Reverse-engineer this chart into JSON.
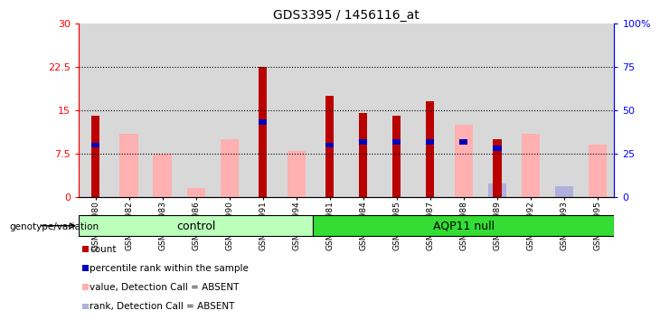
{
  "title": "GDS3395 / 1456116_at",
  "samples": [
    "GSM267980",
    "GSM267982",
    "GSM267983",
    "GSM267986",
    "GSM267990",
    "GSM267991",
    "GSM267994",
    "GSM267981",
    "GSM267984",
    "GSM267985",
    "GSM267987",
    "GSM267988",
    "GSM267989",
    "GSM267992",
    "GSM267993",
    "GSM267995"
  ],
  "count_values": [
    14.0,
    0,
    0,
    0,
    0,
    22.5,
    0,
    17.5,
    14.5,
    14.0,
    16.5,
    0,
    10.0,
    0,
    0,
    0
  ],
  "percentile_values": [
    9.0,
    0,
    0,
    0,
    0,
    13.0,
    0,
    9.0,
    9.5,
    9.5,
    9.5,
    9.5,
    8.5,
    0,
    0,
    0
  ],
  "absent_value_values": [
    0,
    11.0,
    7.5,
    1.5,
    10.0,
    0,
    8.0,
    0,
    0,
    0,
    0,
    12.5,
    0,
    11.0,
    0,
    9.0
  ],
  "absent_rank_values": [
    0,
    8.0,
    7.0,
    2.5,
    0,
    0,
    8.0,
    0,
    0,
    0,
    0,
    0,
    8.0,
    0,
    6.5,
    0
  ],
  "groups": [
    "control",
    "control",
    "control",
    "control",
    "control",
    "control",
    "control",
    "AQP11 null",
    "AQP11 null",
    "AQP11 null",
    "AQP11 null",
    "AQP11 null",
    "AQP11 null",
    "AQP11 null",
    "AQP11 null",
    "AQP11 null"
  ],
  "ylim_left": [
    0,
    30
  ],
  "ylim_right": [
    0,
    100
  ],
  "yticks_left": [
    0,
    7.5,
    15,
    22.5,
    30
  ],
  "yticks_right": [
    0,
    25,
    50,
    75,
    100
  ],
  "ytick_labels_left": [
    "0",
    "7.5",
    "15",
    "22.5",
    "30"
  ],
  "ytick_labels_right": [
    "0",
    "25",
    "50",
    "75",
    "100%"
  ],
  "hlines": [
    7.5,
    15,
    22.5
  ],
  "color_count": "#bb0000",
  "color_percentile": "#0000bb",
  "color_absent_value": "#ffb0b0",
  "color_absent_rank": "#b0b0dd",
  "color_control_bg": "#bbffbb",
  "color_aqp11_bg": "#33dd33",
  "legend_items": [
    {
      "color": "#bb0000",
      "label": "count"
    },
    {
      "color": "#0000bb",
      "label": "percentile rank within the sample"
    },
    {
      "color": "#ffb0b0",
      "label": "value, Detection Call = ABSENT"
    },
    {
      "color": "#b0b0dd",
      "label": "rank, Detection Call = ABSENT"
    }
  ]
}
